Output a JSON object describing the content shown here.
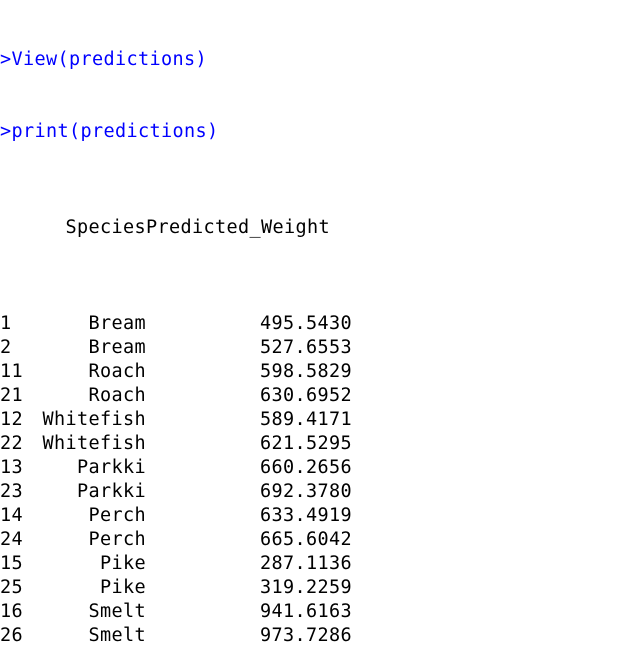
{
  "console": {
    "commands": [
      {
        "prompt": ">",
        "text": "View(predictions)"
      },
      {
        "prompt": ">",
        "text": "print(predictions)"
      }
    ],
    "table": {
      "columns": [
        "Species",
        "Predicted_Weight"
      ],
      "rows": [
        {
          "id": "1",
          "species": "Bream",
          "weight": "495.5430"
        },
        {
          "id": "2",
          "species": "Bream",
          "weight": "527.6553"
        },
        {
          "id": "11",
          "species": "Roach",
          "weight": "598.5829"
        },
        {
          "id": "21",
          "species": "Roach",
          "weight": "630.6952"
        },
        {
          "id": "12",
          "species": "Whitefish",
          "weight": "589.4171"
        },
        {
          "id": "22",
          "species": "Whitefish",
          "weight": "621.5295"
        },
        {
          "id": "13",
          "species": "Parkki",
          "weight": "660.2656"
        },
        {
          "id": "23",
          "species": "Parkki",
          "weight": "692.3780"
        },
        {
          "id": "14",
          "species": "Perch",
          "weight": "633.4919"
        },
        {
          "id": "24",
          "species": "Perch",
          "weight": "665.6042"
        },
        {
          "id": "15",
          "species": "Pike",
          "weight": "287.1136"
        },
        {
          "id": "25",
          "species": "Pike",
          "weight": "319.2259"
        },
        {
          "id": "16",
          "species": "Smelt",
          "weight": "941.6163"
        },
        {
          "id": "26",
          "species": "Smelt",
          "weight": "973.7286"
        }
      ]
    },
    "colors": {
      "command": "#0000ff",
      "output": "#000000",
      "background": "#ffffff"
    }
  }
}
